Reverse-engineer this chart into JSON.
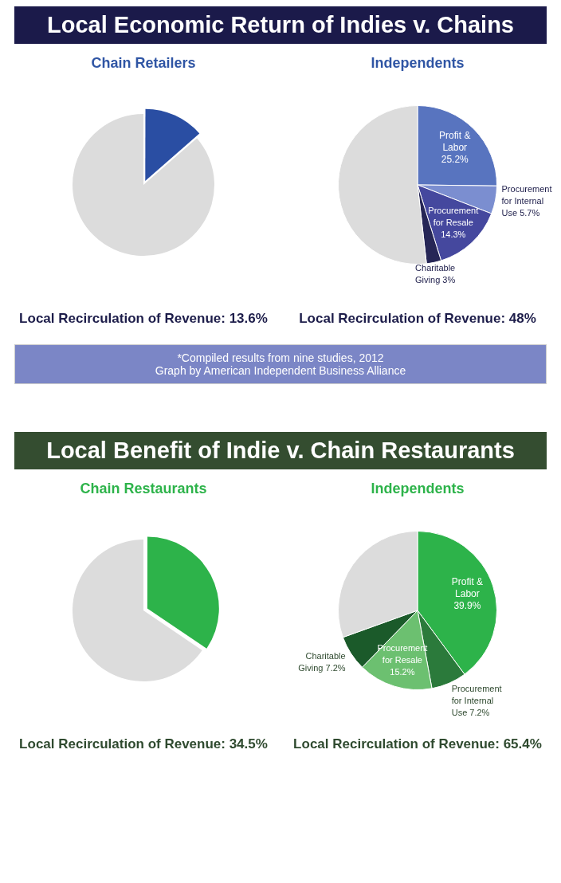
{
  "chart_data": [
    {
      "type": "other",
      "title": "Local Economic Return of Indies v. Chains"
    },
    {
      "type": "pie",
      "title": "Chain Retailers",
      "categories": [
        null,
        null
      ],
      "values": [
        13.6,
        86.4
      ],
      "colors": [
        "#2a4ea3",
        "#dcdcdc"
      ],
      "annotations": [
        "Local Recirculation of Revenue: 13.6%"
      ]
    },
    {
      "type": "pie",
      "title": "Independents",
      "categories": [
        "Profit & Labor",
        "Procurement for Internal Use",
        "Procurement for Resale",
        "Charitable Giving",
        null
      ],
      "values": [
        25.2,
        5.7,
        14.3,
        3,
        51.8
      ],
      "value_labels": [
        "25.2%",
        "5.7%",
        "14.3%",
        "3%",
        null
      ],
      "colors": [
        "#5874bf",
        "#7b8ed0",
        "#45489e",
        "#262656",
        "#dcdcdc"
      ],
      "annotations": [
        "Local Recirculation of Revenue: 48%"
      ]
    },
    {
      "type": "other",
      "annotations": [
        "*Compiled results from nine studies, 2012",
        "Graph by American Independent Business Alliance"
      ]
    },
    {
      "type": "other",
      "title": "Local Benefit of Indie v. Chain Restaurants"
    },
    {
      "type": "pie",
      "title": "Chain Restaurants",
      "categories": [
        null,
        null
      ],
      "values": [
        34.5,
        65.5
      ],
      "colors": [
        "#2db34a",
        "#dcdcdc"
      ],
      "annotations": [
        "Local Recirculation of Revenue: 34.5%"
      ]
    },
    {
      "type": "pie",
      "title": "Independents",
      "categories": [
        "Profit & Labor",
        "Procurement for Internal Use",
        "Procurement for Resale",
        "Charitable Giving",
        null
      ],
      "values": [
        39.9,
        7.2,
        15.2,
        7.2,
        30.5
      ],
      "value_labels": [
        "39.9%",
        "7.2%",
        "15.2%",
        "7.2%",
        null
      ],
      "colors": [
        "#2db34a",
        "#2b7a3b",
        "#6cc070",
        "#1b5a2a",
        "#dcdcdc"
      ],
      "annotations": [
        "Local Recirculation of Revenue: 65.4%"
      ]
    }
  ]
}
